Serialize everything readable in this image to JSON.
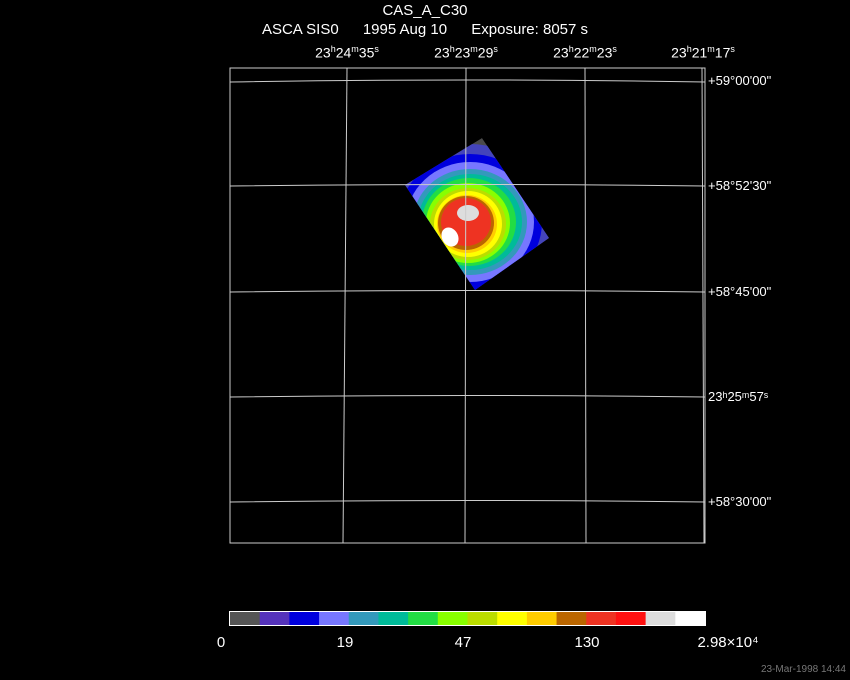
{
  "header": {
    "title": "CAS_A_C30",
    "instrument": "ASCA SIS0",
    "date": "1995 Aug 10",
    "exposure": "Exposure:  8057 s"
  },
  "axes": {
    "ra_labels": [
      {
        "h": "23",
        "m": "24",
        "s": "35"
      },
      {
        "h": "23",
        "m": "23",
        "s": "29"
      },
      {
        "h": "23",
        "m": "22",
        "s": "23"
      },
      {
        "h": "23",
        "m": "21",
        "s": "17"
      }
    ],
    "dec_labels": [
      "+59°00'00\"",
      "+58°52'30\"",
      "+58°45'00\"",
      "23ʰ25ᵐ57ˢ",
      "+58°30'00\""
    ]
  },
  "colorbar": {
    "colors": [
      "#555555",
      "#5533bb",
      "#0000dd",
      "#7777ff",
      "#3399bb",
      "#00bb99",
      "#22dd44",
      "#88ff00",
      "#bbdd00",
      "#ffff00",
      "#ffcc00",
      "#bb6600",
      "#ee3322",
      "#ff1111",
      "#dddddd",
      "#ffffff"
    ],
    "labels": [
      "0",
      "19",
      "47",
      "130",
      "2.98×10⁴"
    ]
  },
  "footer": {
    "timestamp": "23-Mar-1998 14:44"
  }
}
